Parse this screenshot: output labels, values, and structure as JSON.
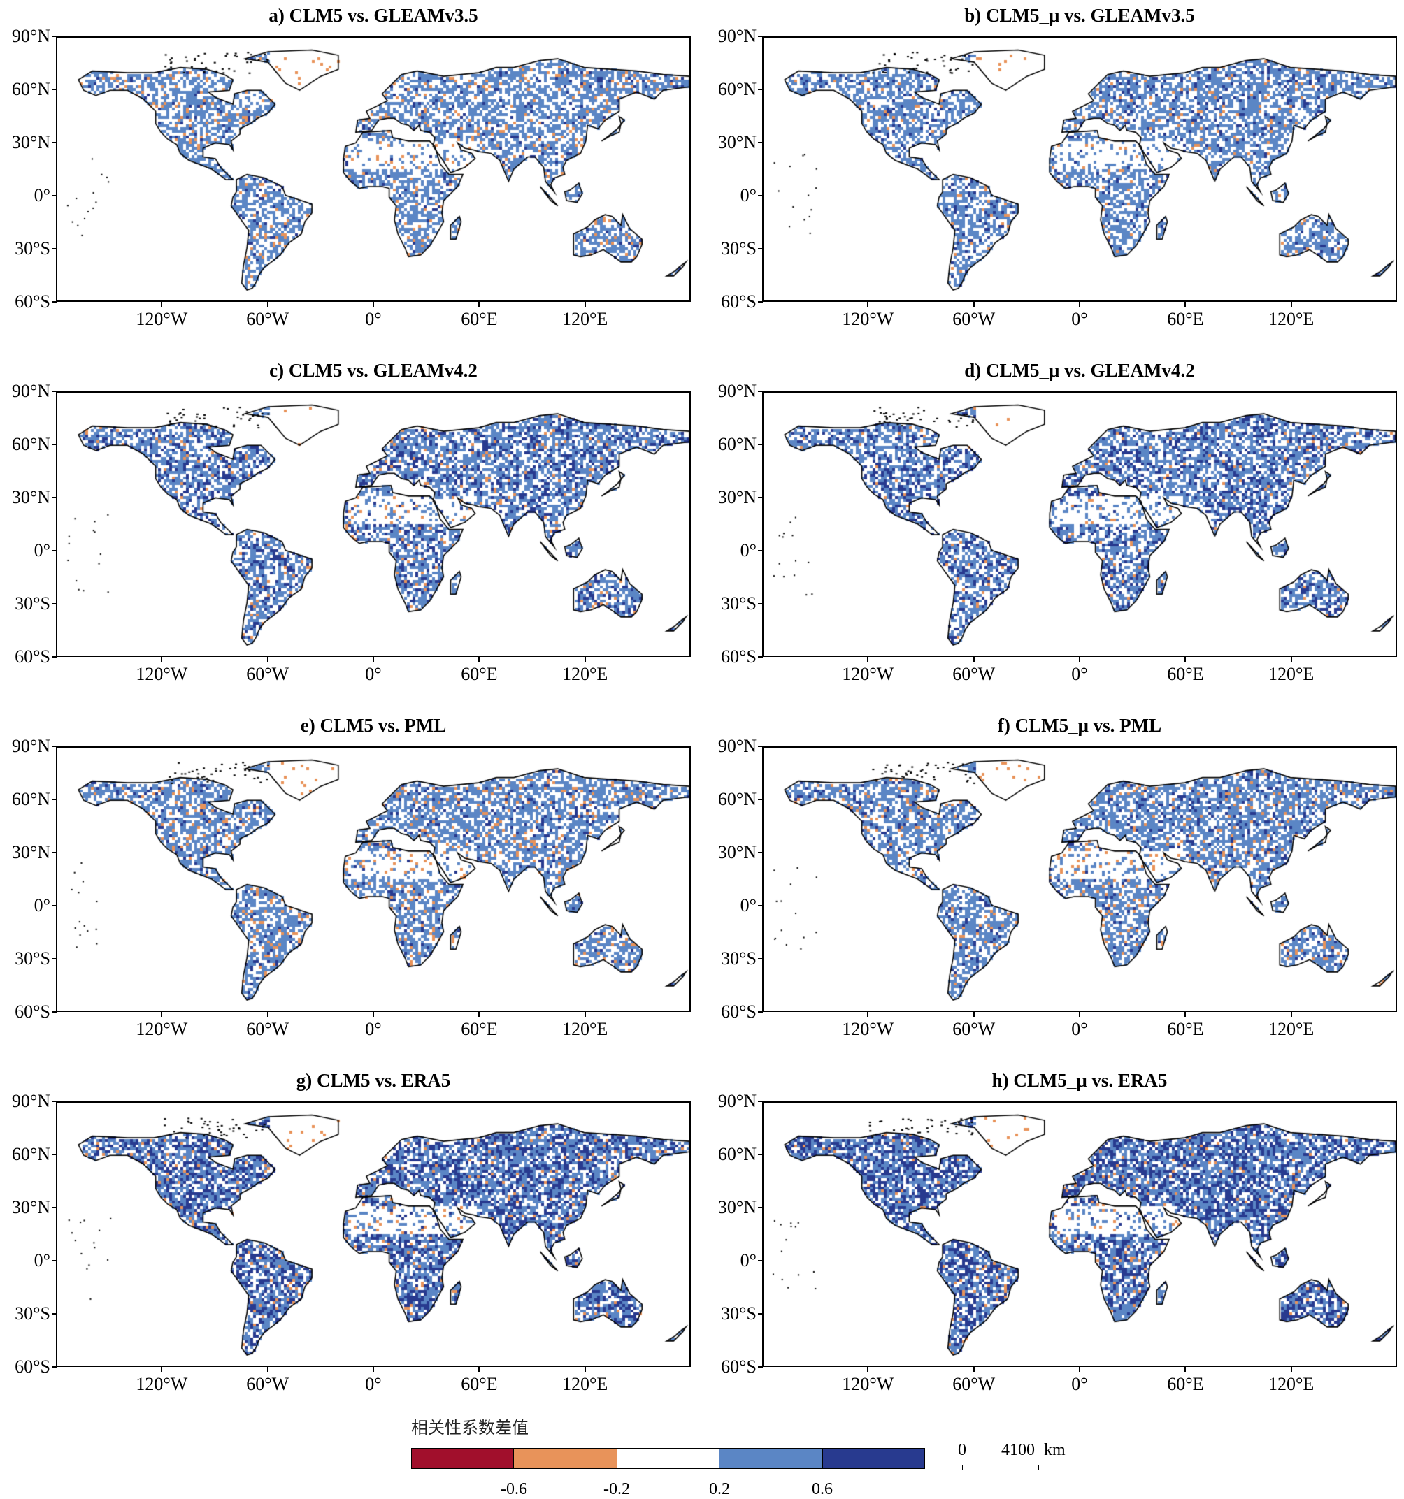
{
  "panels": [
    {
      "title": "a) CLM5 vs. GLEAMv3.5",
      "blue": 0.55,
      "dark": 0.08,
      "orange": 0.05
    },
    {
      "title": "b) CLM5_μ vs. GLEAMv3.5",
      "blue": 0.58,
      "dark": 0.12,
      "orange": 0.03
    },
    {
      "title": "c) CLM5 vs. GLEAMv4.2",
      "blue": 0.62,
      "dark": 0.28,
      "orange": 0.03
    },
    {
      "title": "d) CLM5_μ vs. GLEAMv4.2",
      "blue": 0.63,
      "dark": 0.3,
      "orange": 0.02
    },
    {
      "title": "e) CLM5 vs. PML",
      "blue": 0.58,
      "dark": 0.12,
      "orange": 0.06
    },
    {
      "title": "f) CLM5_μ vs. PML",
      "blue": 0.6,
      "dark": 0.14,
      "orange": 0.05
    },
    {
      "title": "g) CLM5 vs. ERA5",
      "blue": 0.7,
      "dark": 0.4,
      "orange": 0.04
    },
    {
      "title": "h) CLM5_μ vs. ERA5",
      "blue": 0.72,
      "dark": 0.42,
      "orange": 0.03
    }
  ],
  "axes": {
    "lat_ticks": [
      "90°N",
      "60°N",
      "30°N",
      "0°",
      "30°S",
      "60°S"
    ],
    "lon_ticks": [
      "120°W",
      "60°W",
      "0°",
      "60°E",
      "120°E"
    ]
  },
  "legend": {
    "title": "相关性系数差值",
    "colors": [
      "#a10f2c",
      "#e8935a",
      "#ffffff",
      "#5b86c5",
      "#283a8f"
    ],
    "tick_labels": [
      "-0.6",
      "-0.2",
      "0.2",
      "0.6"
    ]
  },
  "scale_bar": {
    "zero": "0",
    "distance": "4100",
    "unit": "km"
  }
}
